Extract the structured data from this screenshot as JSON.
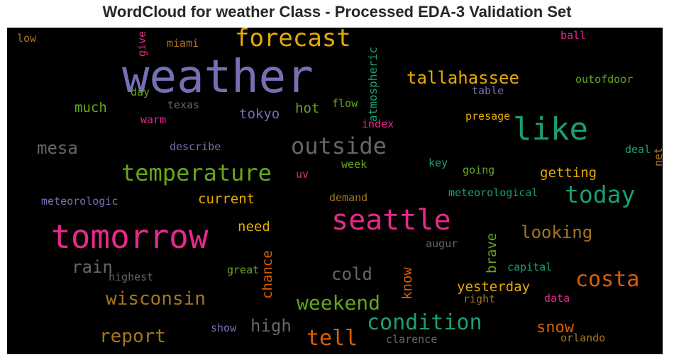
{
  "title": "WordCloud for weather Class - Processed EDA-3 Validation Set",
  "palette": {
    "purple": "#7570b3",
    "orange": "#d95f02",
    "pink": "#e7298a",
    "teal": "#1b9e77",
    "green": "#66a61e",
    "gold": "#e6ab02",
    "brown": "#a6761d",
    "gray": "#666666"
  },
  "words": [
    {
      "text": "weather",
      "color": "#7570b3"
    },
    {
      "text": "tomorrow",
      "color": "#e7298a"
    },
    {
      "text": "seattle",
      "color": "#e7298a"
    },
    {
      "text": "like",
      "color": "#1b9e77"
    },
    {
      "text": "forecast",
      "color": "#e6ab02"
    },
    {
      "text": "temperature",
      "color": "#66a61e"
    },
    {
      "text": "outside",
      "color": "#666666"
    },
    {
      "text": "today",
      "color": "#1b9e77"
    },
    {
      "text": "condition",
      "color": "#1b9e77"
    },
    {
      "text": "weekend",
      "color": "#66a61e"
    },
    {
      "text": "tell",
      "color": "#d95f02"
    },
    {
      "text": "costa",
      "color": "#d95f02"
    },
    {
      "text": "tallahassee",
      "color": "#e6ab02"
    },
    {
      "text": "wisconsin",
      "color": "#a6761d"
    },
    {
      "text": "report",
      "color": "#a6761d"
    },
    {
      "text": "looking",
      "color": "#a6761d"
    },
    {
      "text": "high",
      "color": "#666666"
    },
    {
      "text": "mesa",
      "color": "#666666"
    },
    {
      "text": "rain",
      "color": "#666666"
    },
    {
      "text": "cold",
      "color": "#666666"
    },
    {
      "text": "snow",
      "color": "#d95f02"
    },
    {
      "text": "yesterday",
      "color": "#e6ab02"
    },
    {
      "text": "getting",
      "color": "#e6ab02"
    },
    {
      "text": "current",
      "color": "#e6ab02"
    },
    {
      "text": "need",
      "color": "#e6ab02"
    },
    {
      "text": "tokyo",
      "color": "#7570b3"
    },
    {
      "text": "hot",
      "color": "#66a61e"
    },
    {
      "text": "much",
      "color": "#66a61e"
    },
    {
      "text": "chance",
      "color": "#d95f02"
    },
    {
      "text": "know",
      "color": "#d95f02"
    },
    {
      "text": "brave",
      "color": "#66a61e"
    },
    {
      "text": "atmospheric",
      "color": "#1b9e77"
    },
    {
      "text": "give",
      "color": "#e7298a"
    },
    {
      "text": "low",
      "color": "#a6761d"
    },
    {
      "text": "miami",
      "color": "#a6761d"
    },
    {
      "text": "ball",
      "color": "#e7298a"
    },
    {
      "text": "outofdoor",
      "color": "#66a61e"
    },
    {
      "text": "table",
      "color": "#7570b3"
    },
    {
      "text": "day",
      "color": "#66a61e"
    },
    {
      "text": "texas",
      "color": "#666666"
    },
    {
      "text": "flow",
      "color": "#66a61e"
    },
    {
      "text": "warm",
      "color": "#e7298a"
    },
    {
      "text": "index",
      "color": "#e7298a"
    },
    {
      "text": "presage",
      "color": "#e6ab02"
    },
    {
      "text": "describe",
      "color": "#7570b3"
    },
    {
      "text": "deal",
      "color": "#1b9e77"
    },
    {
      "text": "net",
      "color": "#a6761d"
    },
    {
      "text": "uv",
      "color": "#e7298a"
    },
    {
      "text": "week",
      "color": "#66a61e"
    },
    {
      "text": "key",
      "color": "#1b9e77"
    },
    {
      "text": "going",
      "color": "#66a61e"
    },
    {
      "text": "meteorologic",
      "color": "#7570b3"
    },
    {
      "text": "demand",
      "color": "#a6761d"
    },
    {
      "text": "meteorological",
      "color": "#1b9e77"
    },
    {
      "text": "augur",
      "color": "#666666"
    },
    {
      "text": "highest",
      "color": "#666666"
    },
    {
      "text": "great",
      "color": "#66a61e"
    },
    {
      "text": "capital",
      "color": "#1b9e77"
    },
    {
      "text": "right",
      "color": "#a6761d"
    },
    {
      "text": "data",
      "color": "#e7298a"
    },
    {
      "text": "show",
      "color": "#7570b3"
    },
    {
      "text": "clarence",
      "color": "#666666"
    },
    {
      "text": "orlando",
      "color": "#a6761d"
    }
  ]
}
